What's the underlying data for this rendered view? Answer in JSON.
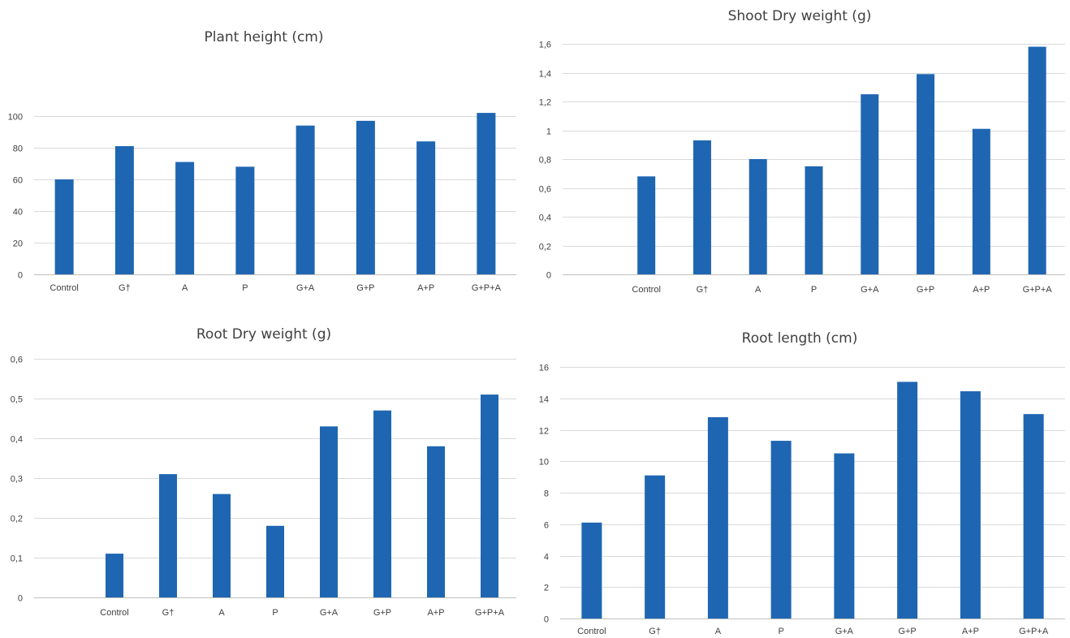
{
  "chart_data": [
    {
      "type": "bar",
      "title": "Plant height (cm)",
      "categories": [
        "Control",
        "G†",
        "A",
        "P",
        "G+A",
        "G+P",
        "A+P",
        "G+P+A"
      ],
      "values": [
        60,
        81,
        71,
        68,
        94,
        97,
        84,
        102
      ],
      "ylim": [
        0,
        120
      ],
      "yticks": [
        "0",
        "20",
        "40",
        "60",
        "80",
        "100"
      ],
      "ytick_values": [
        0,
        20,
        40,
        60,
        80,
        100
      ],
      "grid": true,
      "leading_empty_slot": false,
      "bar_color": "#1f66b2"
    },
    {
      "type": "bar",
      "title": "Shoot Dry weight (g)",
      "categories": [
        "Control",
        "G†",
        "A",
        "P",
        "G+A",
        "G+P",
        "A+P",
        "G+P+A"
      ],
      "values": [
        0.68,
        0.93,
        0.8,
        0.75,
        1.25,
        1.39,
        1.01,
        1.58
      ],
      "ylim": [
        0,
        1.6
      ],
      "yticks": [
        "0",
        "0,2",
        "0,4",
        "0,6",
        "0,8",
        "1",
        "1,2",
        "1,4",
        "1,6"
      ],
      "ytick_values": [
        0,
        0.2,
        0.4,
        0.6,
        0.8,
        1,
        1.2,
        1.4,
        1.6
      ],
      "grid": true,
      "leading_empty_slot": true,
      "bar_color": "#1f66b2"
    },
    {
      "type": "bar",
      "title": "Root Dry weight (g)",
      "categories": [
        "Control",
        "G†",
        "A",
        "P",
        "G+A",
        "G+P",
        "A+P",
        "G+P+A"
      ],
      "values": [
        0.11,
        0.31,
        0.26,
        0.18,
        0.43,
        0.47,
        0.38,
        0.51
      ],
      "ylim": [
        0,
        0.6
      ],
      "yticks": [
        "0",
        "0,1",
        "0,2",
        "0,3",
        "0,4",
        "0,5",
        "0,6"
      ],
      "ytick_values": [
        0,
        0.1,
        0.2,
        0.3,
        0.4,
        0.5,
        0.6
      ],
      "grid": true,
      "leading_empty_slot": true,
      "bar_color": "#1f66b2"
    },
    {
      "type": "bar",
      "title": "Root length (cm)",
      "categories": [
        "Control",
        "G†",
        "A",
        "P",
        "G+A",
        "G+P",
        "A+P",
        "G+P+A"
      ],
      "values": [
        6.1,
        9.1,
        12.8,
        11.3,
        10.5,
        15.05,
        14.45,
        13.0
      ],
      "ylim": [
        0,
        16
      ],
      "yticks": [
        "0",
        "2",
        "4",
        "6",
        "8",
        "10",
        "12",
        "14",
        "16"
      ],
      "ytick_values": [
        0,
        2,
        4,
        6,
        8,
        10,
        12,
        14,
        16
      ],
      "grid": true,
      "leading_empty_slot": false,
      "bar_color": "#1f66b2"
    }
  ]
}
